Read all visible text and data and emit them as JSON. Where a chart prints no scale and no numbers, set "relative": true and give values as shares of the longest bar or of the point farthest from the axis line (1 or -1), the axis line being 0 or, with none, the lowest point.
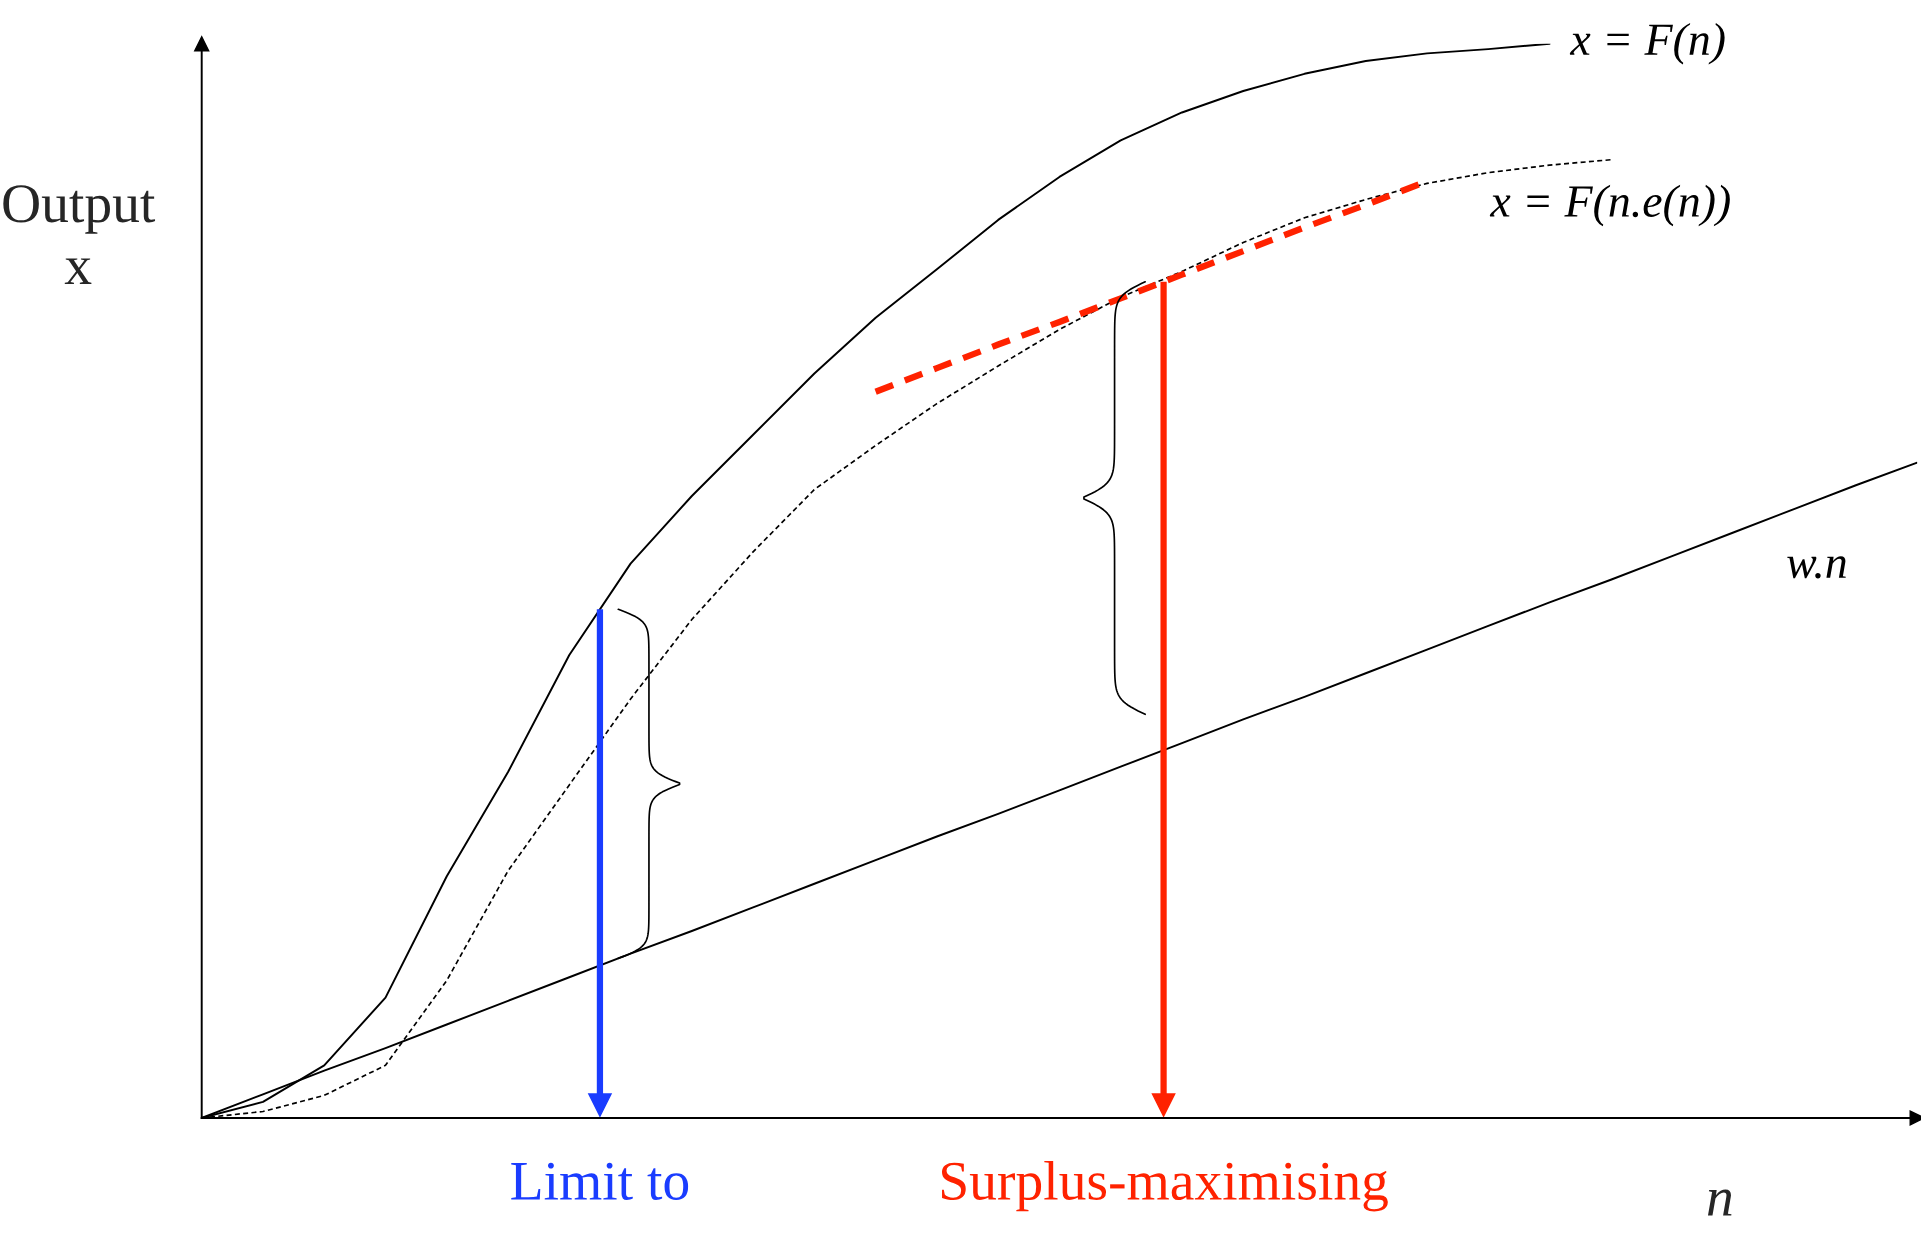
{
  "chart_data": {
    "type": "line",
    "relative": true,
    "xlabel": "n",
    "ylabel": "Output\nx",
    "legend": false,
    "categories": [
      null,
      null,
      null,
      null,
      null,
      null,
      null,
      null,
      null,
      null,
      null,
      null,
      null,
      null,
      null,
      null,
      null,
      null,
      null,
      null,
      null,
      null,
      null,
      null,
      null,
      null,
      null,
      null,
      null
    ],
    "series": [
      {
        "name": "x = F(n)",
        "color": "#000000",
        "line_style": "solid",
        "values": [
          0,
          0.015,
          0.049,
          0.112,
          0.225,
          0.322,
          0.431,
          0.516,
          0.579,
          0.636,
          0.693,
          0.745,
          0.79,
          0.836,
          0.876,
          0.91,
          0.936,
          0.956,
          0.972,
          0.984,
          0.991,
          0.995,
          1.0,
          null,
          null,
          null,
          null,
          null,
          null
        ]
      },
      {
        "name": "x = F(n.e(n))",
        "color": "#000000",
        "line_style": "dotted",
        "values": [
          0,
          0.006,
          0.021,
          0.049,
          0.128,
          0.23,
          0.31,
          0.39,
          0.464,
          0.527,
          0.585,
          0.626,
          0.665,
          0.7,
          0.734,
          0.764,
          0.788,
          0.815,
          0.838,
          0.855,
          0.87,
          0.88,
          0.887,
          0.892,
          null,
          null,
          null,
          null,
          null
        ]
      },
      {
        "name": "w.n",
        "color": "#000000",
        "line_style": "solid",
        "values": [
          0,
          0.022,
          0.044,
          0.065,
          0.087,
          0.109,
          0.131,
          0.153,
          0.174,
          0.196,
          0.218,
          0.24,
          0.262,
          0.283,
          0.305,
          0.327,
          0.349,
          0.371,
          0.392,
          0.414,
          0.436,
          0.458,
          0.48,
          0.501,
          0.523,
          0.545,
          0.567,
          0.589,
          0.61
        ]
      },
      {
        "color": "#ff2200",
        "line_style": "dashed",
        "values": [
          null,
          null,
          null,
          null,
          null,
          null,
          null,
          null,
          null,
          null,
          null,
          0.676,
          0.698,
          0.72,
          0.741,
          0.763,
          0.785,
          0.807,
          0.829,
          0.85,
          0.872,
          null,
          null,
          null,
          null,
          null,
          null,
          null,
          null
        ]
      }
    ],
    "annotations": [
      "Limit to",
      "Surplus-maximising"
    ]
  }
}
